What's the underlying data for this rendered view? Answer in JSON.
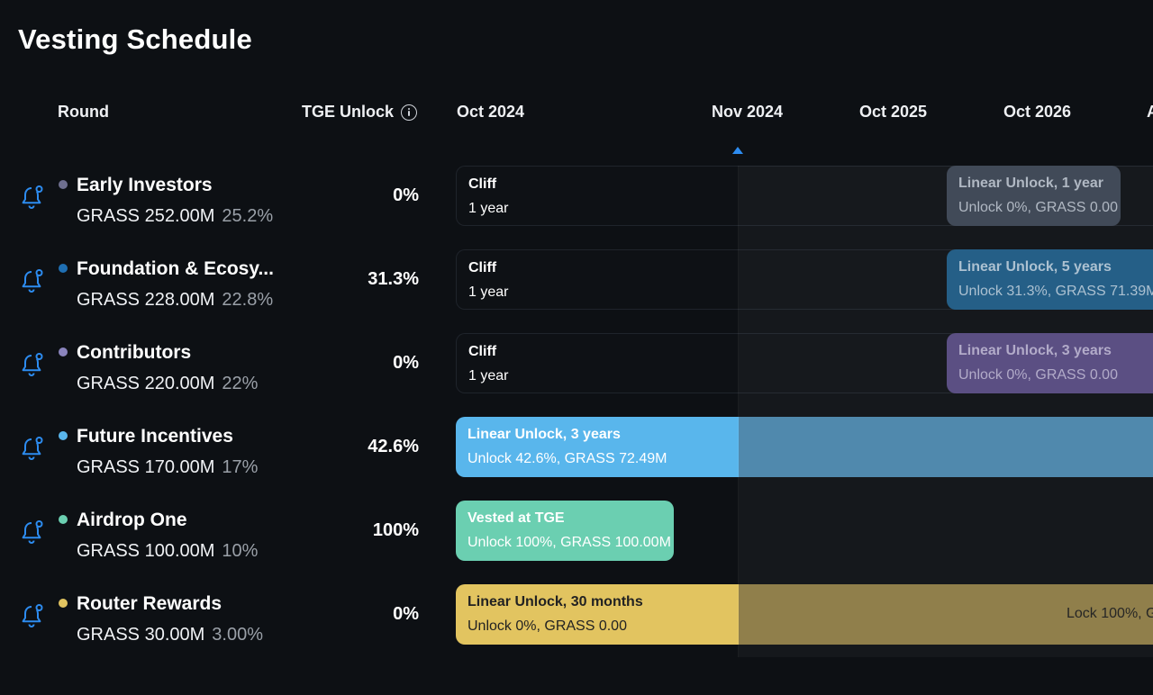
{
  "title": "Vesting Schedule",
  "headers": {
    "round": "Round",
    "tge": "TGE Unlock"
  },
  "timeline": {
    "dates": [
      "Oct 2024",
      "Nov 2024",
      "Oct 2025",
      "Oct 2026",
      "A"
    ]
  },
  "rows": [
    {
      "name": "Early Investors",
      "amount": "GRASS 252.00M",
      "pct": "25.2%",
      "tge": "0%",
      "dot": "#6e6f8f",
      "cliff": {
        "l1": "Cliff",
        "l2": "1 year"
      },
      "linear": {
        "l1": "Linear Unlock, 1 year",
        "l2": "Unlock 0%, GRASS 0.00"
      }
    },
    {
      "name": "Foundation & Ecosy...",
      "amount": "GRASS 228.00M",
      "pct": "22.8%",
      "tge": "31.3%",
      "dot": "#1f6fb3",
      "cliff": {
        "l1": "Cliff",
        "l2": "1 year"
      },
      "linear": {
        "l1": "Linear Unlock, 5 years",
        "l2": "Unlock 31.3%, GRASS 71.39M"
      }
    },
    {
      "name": "Contributors",
      "amount": "GRASS 220.00M",
      "pct": "22%",
      "tge": "0%",
      "dot": "#8a84bd",
      "cliff": {
        "l1": "Cliff",
        "l2": "1 year"
      },
      "linear": {
        "l1": "Linear Unlock, 3 years",
        "l2": "Unlock 0%, GRASS 0.00"
      }
    },
    {
      "name": "Future Incentives",
      "amount": "GRASS 170.00M",
      "pct": "17%",
      "tge": "42.6%",
      "dot": "#59b6ec",
      "linear": {
        "l1": "Linear Unlock, 3 years",
        "l2": "Unlock 42.6%, GRASS 72.49M"
      }
    },
    {
      "name": "Airdrop One",
      "amount": "GRASS 100.00M",
      "pct": "10%",
      "tge": "100%",
      "dot": "#6bcfb1",
      "vested": {
        "l1": "Vested at TGE",
        "l2": "Unlock 100%, GRASS 100.00M"
      }
    },
    {
      "name": "Router Rewards",
      "amount": "GRASS 30.00M",
      "pct": "3.00%",
      "tge": "0%",
      "dot": "#e2c460",
      "linear": {
        "l1": "Linear Unlock, 30 months",
        "l2": "Unlock 0%, GRASS 0.00"
      },
      "lock": "Lock 100%, G"
    }
  ]
}
